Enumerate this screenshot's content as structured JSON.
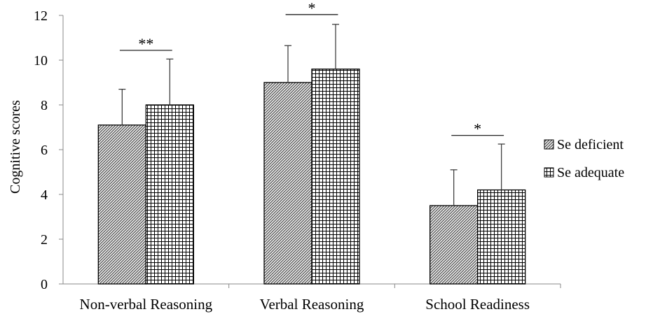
{
  "chart_data": {
    "type": "bar",
    "title": "",
    "xlabel": "",
    "ylabel": "Cognitive  scores",
    "ylim": [
      0,
      12
    ],
    "yticks": [
      0,
      2,
      4,
      6,
      8,
      10,
      12
    ],
    "categories": [
      "Non-verbal Reasoning",
      "Verbal Reasoning",
      "School Readiness"
    ],
    "series": [
      {
        "name": "Se deficient",
        "values": [
          7.1,
          9.0,
          3.5
        ],
        "error": [
          1.6,
          1.65,
          1.6
        ],
        "pattern": "diagonal-hatch"
      },
      {
        "name": "Se adequate",
        "values": [
          8.0,
          9.6,
          4.2
        ],
        "error": [
          2.05,
          2.0,
          2.05
        ],
        "pattern": "grid"
      }
    ],
    "significance": [
      "**",
      "*",
      "*"
    ],
    "legend_position": "right",
    "grid": false
  }
}
